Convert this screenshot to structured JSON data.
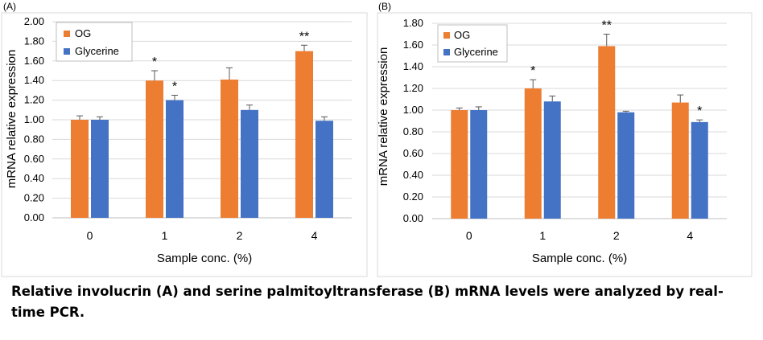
{
  "caption": "Relative involucrin (A) and serine palmitoyltransferase (B) mRNA levels were analyzed by real-time PCR.",
  "colors": {
    "og": "#ED7D31",
    "glycerine": "#4472C4",
    "error_bar": "#595959",
    "grid": "#d9d9d9",
    "axis": "#bfbfbf"
  },
  "chart_data": [
    {
      "type": "bar",
      "panel_label": "(A)",
      "categories": [
        "0",
        "1",
        "2",
        "4"
      ],
      "xlabel": "Sample conc. (%)",
      "ylabel": "mRNA  relative expression",
      "ylim": [
        0,
        2.0
      ],
      "yticks": [
        "0.00",
        "0.20",
        "0.40",
        "0.60",
        "0.80",
        "1.00",
        "1.20",
        "1.40",
        "1.60",
        "1.80",
        "2.00"
      ],
      "grid": true,
      "legend_position": "top-left",
      "series": [
        {
          "name": "OG",
          "values": [
            1.0,
            1.4,
            1.41,
            1.7
          ],
          "errors": [
            0.04,
            0.1,
            0.12,
            0.06
          ],
          "annotations": [
            "",
            "*",
            "",
            "**"
          ]
        },
        {
          "name": "Glycerine",
          "values": [
            1.0,
            1.2,
            1.1,
            0.99
          ],
          "errors": [
            0.03,
            0.05,
            0.05,
            0.04
          ],
          "annotations": [
            "",
            "*",
            "",
            ""
          ]
        }
      ]
    },
    {
      "type": "bar",
      "panel_label": "(B)",
      "categories": [
        "0",
        "1",
        "2",
        "4"
      ],
      "xlabel": "Sample conc. (%)",
      "ylabel": "mRNA  relative expression",
      "ylim": [
        0,
        1.8
      ],
      "yticks": [
        "0.00",
        "0.20",
        "0.40",
        "0.60",
        "0.80",
        "1.00",
        "1.20",
        "1.40",
        "1.60",
        "1.80"
      ],
      "grid": true,
      "legend_position": "top-left",
      "series": [
        {
          "name": "OG",
          "values": [
            1.0,
            1.2,
            1.59,
            1.07
          ],
          "errors": [
            0.02,
            0.08,
            0.11,
            0.07
          ],
          "annotations": [
            "",
            "*",
            "**",
            ""
          ]
        },
        {
          "name": "Glycerine",
          "values": [
            1.0,
            1.08,
            0.98,
            0.89
          ],
          "errors": [
            0.03,
            0.05,
            0.01,
            0.02
          ],
          "annotations": [
            "",
            "",
            "",
            "*"
          ]
        }
      ]
    }
  ]
}
